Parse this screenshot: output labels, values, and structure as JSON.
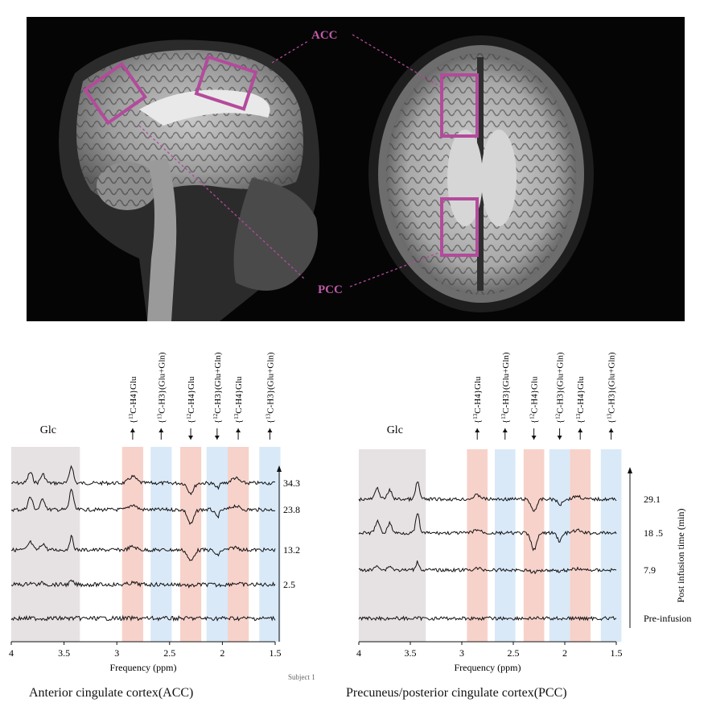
{
  "regions": {
    "acc_label": "ACC",
    "pcc_label": "PCC",
    "accent_color": "#b44a9c"
  },
  "peak_labels": [
    "{13C-H4}Glu",
    "{13C-H3}(Glu+Gln)",
    "{12C-H4}Glu",
    "{12C-H3}(Glu+Gln)",
    "{13C-H4}Glu",
    "{13C-H3}(Glu+Gln)"
  ],
  "peak_label_parts": [
    {
      "pre": "{",
      "sup": "13",
      "post": "C-H4}Glu"
    },
    {
      "pre": "{",
      "sup": "13",
      "post": "C-H3}(Glu+Gln)"
    },
    {
      "pre": "{",
      "sup": "12",
      "post": "C-H4}Glu"
    },
    {
      "pre": "{",
      "sup": "12",
      "post": "C-H3}(Glu+Gln)"
    },
    {
      "pre": "{",
      "sup": "13",
      "post": "C-H4}Glu"
    },
    {
      "pre": "{",
      "sup": "13",
      "post": "C-H3}(Glu+Gln)"
    }
  ],
  "glc_label": "Glc",
  "acc_panel": {
    "time_labels": [
      "34.3",
      "23.8",
      "13.2",
      "2.5",
      ""
    ],
    "ticks": [
      "4",
      "3.5",
      "3",
      "2.5",
      "2",
      "1.5"
    ],
    "xlabel": "Frequency (ppm)",
    "caption": "Anterior cingulate cortex(ACC)"
  },
  "pcc_panel": {
    "time_labels": [
      "29.1",
      "18 .5",
      "7.9",
      "Pre-infusion"
    ],
    "ticks": [
      "4",
      "3.5",
      "3",
      "2.5",
      "2",
      "1.5"
    ],
    "xlabel": "Frequency (ppm)",
    "ylabel": "Post infusion time (min)",
    "caption": "Precuneus/posterior cingulate cortex(PCC)"
  },
  "band_colors": {
    "glc": "#e6e1e3",
    "h4": "#f7d2ca",
    "h3": "#d9e9f8"
  },
  "stray_text": "Subject 1"
}
